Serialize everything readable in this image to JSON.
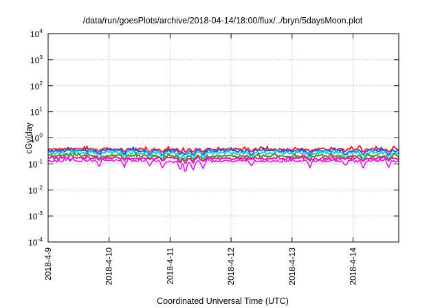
{
  "chart_data": {
    "type": "line",
    "title": "/data/run/goesPlots/archive/2018-04-14/18:00/flux/../bryn/5daysMoon.plot",
    "xlabel": "Coordinated Universal Time (UTC)",
    "ylabel": "cGy/day",
    "yscale": "log",
    "ylim": [
      0.0001,
      10000
    ],
    "y_ticks": [
      {
        "base": "10",
        "exp": "-4",
        "value": 0.0001
      },
      {
        "base": "10",
        "exp": "-3",
        "value": 0.001
      },
      {
        "base": "10",
        "exp": "-2",
        "value": 0.01
      },
      {
        "base": "10",
        "exp": "-1",
        "value": 0.1
      },
      {
        "base": "10",
        "exp": "0",
        "value": 1
      },
      {
        "base": "10",
        "exp": "1",
        "value": 10
      },
      {
        "base": "10",
        "exp": "2",
        "value": 100
      },
      {
        "base": "10",
        "exp": "3",
        "value": 1000
      },
      {
        "base": "10",
        "exp": "4",
        "value": 10000
      }
    ],
    "xlim": [
      "2018-04-09 00:00",
      "2018-04-14 18:00"
    ],
    "x_ticks": [
      "2018-4-9",
      "2018-4-10",
      "2018-4-11",
      "2018-4-12",
      "2018-4-13",
      "2018-4-14"
    ],
    "grid": true,
    "series": [
      {
        "color": "#e8262a",
        "base": 0.36,
        "dip": 0.04,
        "x": [
          "2018-04-09",
          "2018-04-10",
          "2018-04-11",
          "2018-04-12",
          "2018-04-13",
          "2018-04-14"
        ],
        "values": [
          0.36,
          0.38,
          0.36,
          0.37,
          0.36,
          0.37
        ]
      },
      {
        "color": "#2b4fe0",
        "base": 0.31,
        "dip": 0.06,
        "x": [
          "2018-04-09",
          "2018-04-10",
          "2018-04-11",
          "2018-04-12",
          "2018-04-13",
          "2018-04-14"
        ],
        "values": [
          0.31,
          0.33,
          0.32,
          0.32,
          0.31,
          0.32
        ]
      },
      {
        "color": "#22c8e8",
        "base": 0.26,
        "dip": 0.08,
        "x": [
          "2018-04-09",
          "2018-04-10",
          "2018-04-11",
          "2018-04-12",
          "2018-04-13",
          "2018-04-14"
        ],
        "values": [
          0.26,
          0.27,
          0.26,
          0.26,
          0.26,
          0.26
        ]
      },
      {
        "color": "#2ca02c",
        "base": 0.2,
        "dip": 0.07,
        "x": [
          "2018-04-09",
          "2018-04-10",
          "2018-04-11",
          "2018-04-12",
          "2018-04-13",
          "2018-04-14"
        ],
        "values": [
          0.2,
          0.21,
          0.2,
          0.2,
          0.2,
          0.2
        ]
      },
      {
        "color": "#e81e9a",
        "base": 0.16,
        "dip": 0.07,
        "x": [
          "2018-04-09",
          "2018-04-10",
          "2018-04-11",
          "2018-04-12",
          "2018-04-13",
          "2018-04-14"
        ],
        "values": [
          0.16,
          0.17,
          0.16,
          0.16,
          0.16,
          0.16
        ]
      },
      {
        "color": "#ff00ff",
        "base": 0.13,
        "dip": 0.02,
        "x": [
          "2018-04-09",
          "2018-04-10",
          "2018-04-11",
          "2018-04-12",
          "2018-04-13",
          "2018-04-14"
        ],
        "values": [
          0.13,
          0.14,
          0.12,
          0.13,
          0.13,
          0.13
        ]
      }
    ],
    "dips": [
      {
        "x": "2018-04-09 20:00",
        "min": 0.07
      },
      {
        "x": "2018-04-10 06:00",
        "min": 0.07
      },
      {
        "x": "2018-04-10 16:00",
        "min": 0.08
      },
      {
        "x": "2018-04-10 21:00",
        "min": 0.06
      },
      {
        "x": "2018-04-11 04:00",
        "min": 0.05
      },
      {
        "x": "2018-04-11 06:00",
        "min": 0.035
      },
      {
        "x": "2018-04-11 09:00",
        "min": 0.05
      },
      {
        "x": "2018-04-11 13:00",
        "min": 0.06
      },
      {
        "x": "2018-04-12 08:00",
        "min": 0.08
      },
      {
        "x": "2018-04-13 07:00",
        "min": 0.07
      },
      {
        "x": "2018-04-13 21:00",
        "min": 0.08
      },
      {
        "x": "2018-04-14 04:00",
        "min": 0.06
      },
      {
        "x": "2018-04-14 14:00",
        "min": 0.07
      }
    ]
  }
}
